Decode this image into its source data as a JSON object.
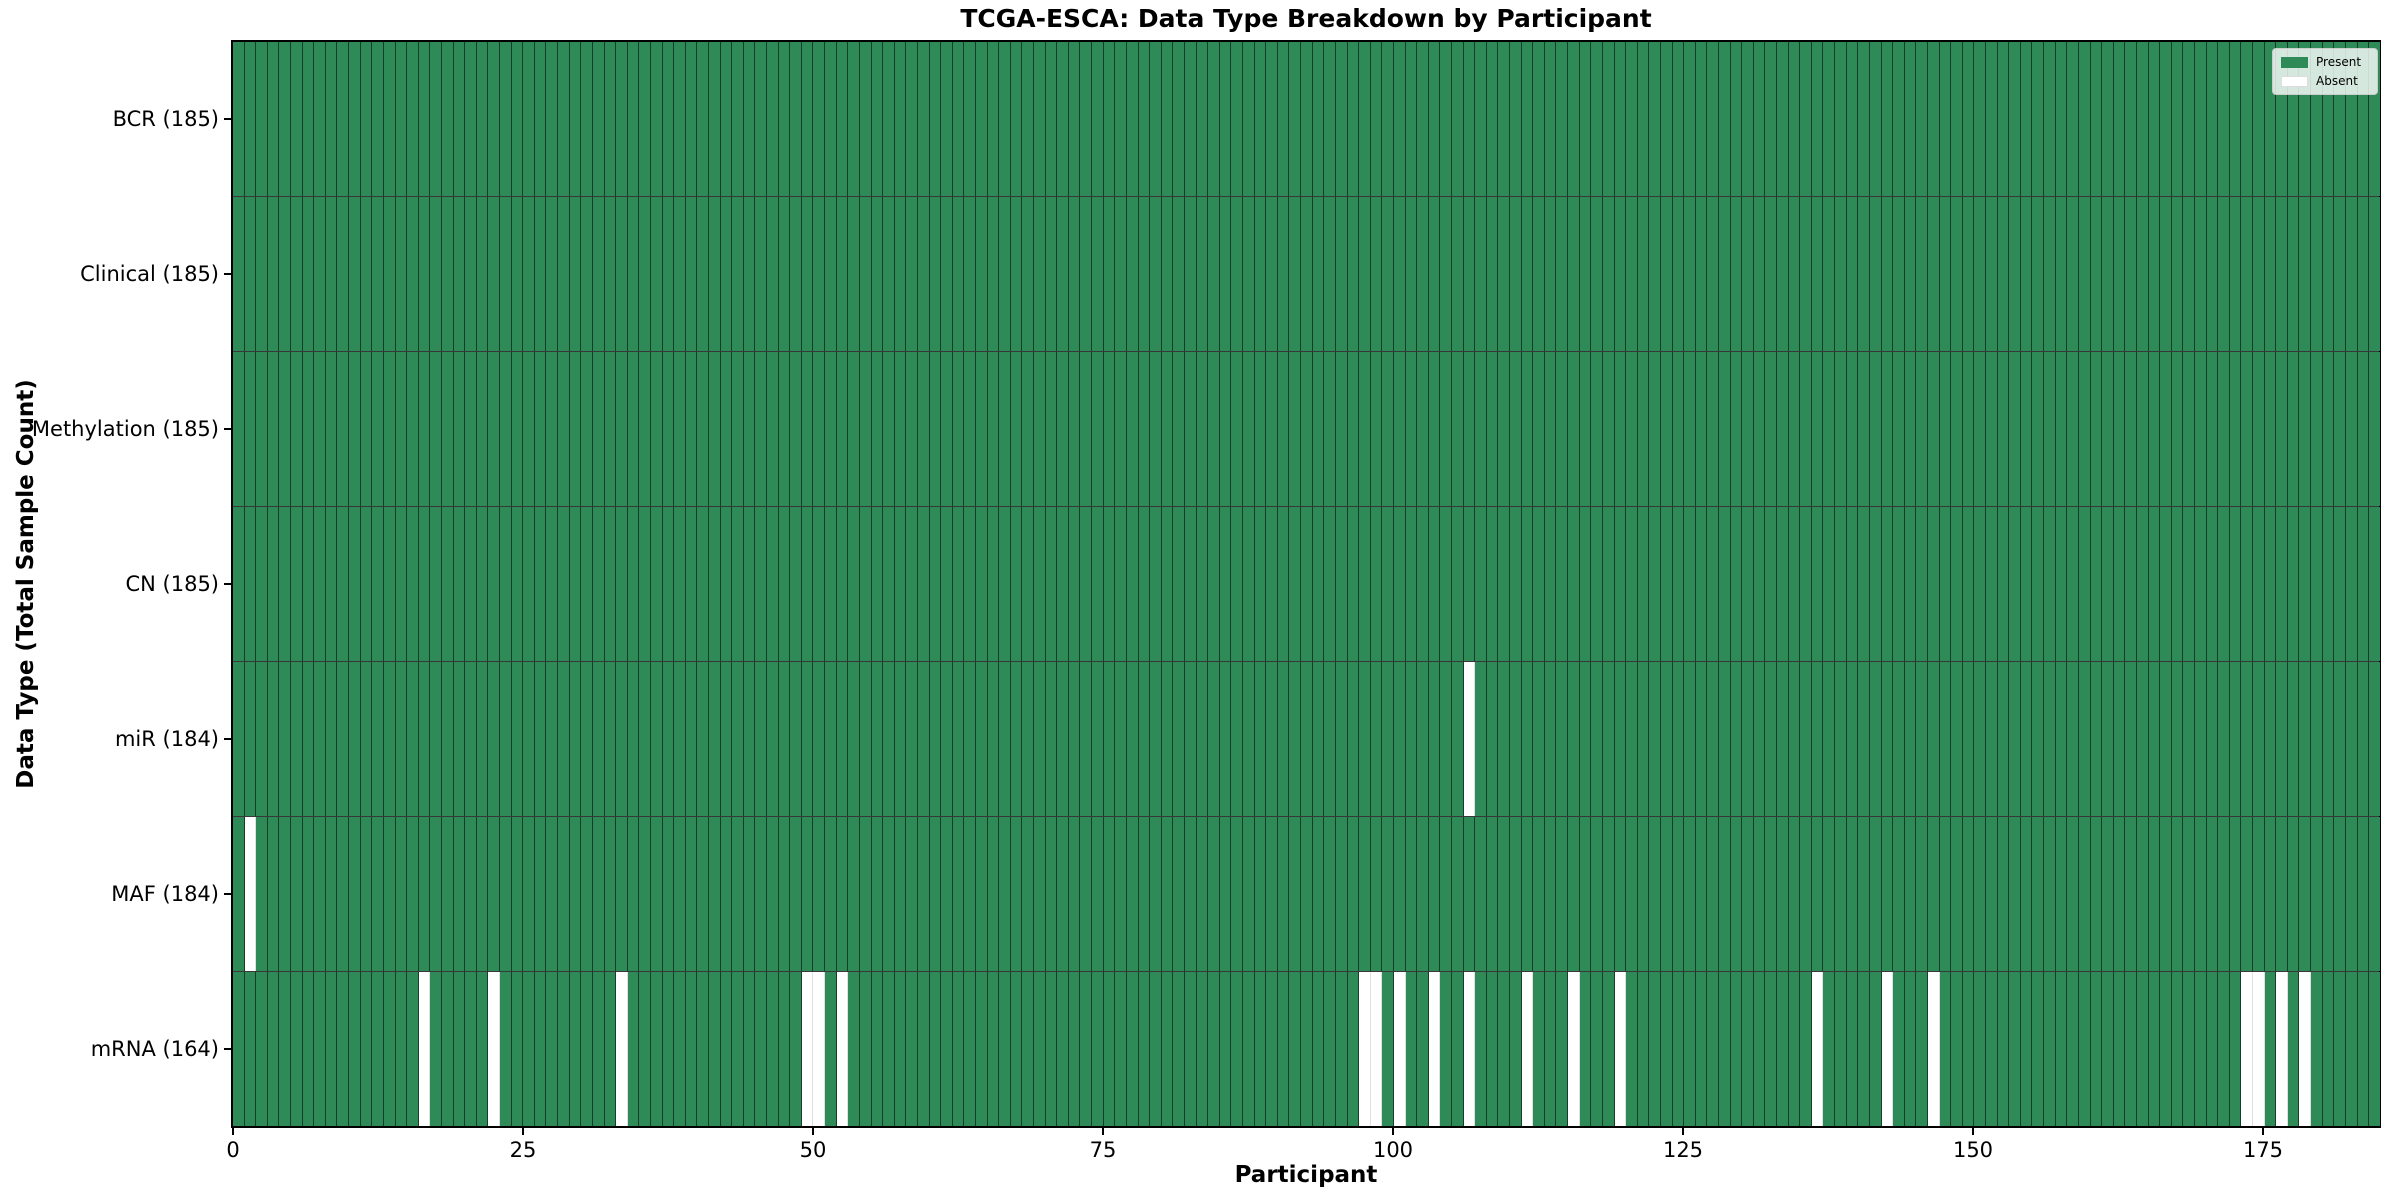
{
  "chart_data": {
    "type": "heatmap",
    "title": "TCGA-ESCA: Data Type Breakdown by Participant",
    "xlabel": "Participant",
    "ylabel": "Data Type (Total Sample Count)",
    "n_participants": 185,
    "x_ticks": [
      0,
      25,
      50,
      75,
      100,
      125,
      150,
      175
    ],
    "colors": {
      "present": "#2e8b57",
      "absent": "#ffffff"
    },
    "legend": [
      {
        "label": "Present",
        "color": "#2e8b57"
      },
      {
        "label": "Absent",
        "color": "#ffffff"
      }
    ],
    "legend_position": "upper right",
    "rows": [
      {
        "label": "BCR (185)",
        "total_samples": 185,
        "missing_participants": []
      },
      {
        "label": "Clinical (185)",
        "total_samples": 185,
        "missing_participants": []
      },
      {
        "label": "Methylation (185)",
        "total_samples": 185,
        "missing_participants": []
      },
      {
        "label": "CN (185)",
        "total_samples": 185,
        "missing_participants": []
      },
      {
        "label": "miR (184)",
        "total_samples": 184,
        "missing_participants": [
          106
        ]
      },
      {
        "label": "MAF (184)",
        "total_samples": 184,
        "missing_participants": [
          1
        ]
      },
      {
        "label": "mRNA (164)",
        "total_samples": 164,
        "missing_participants": [
          16,
          22,
          33,
          49,
          50,
          52,
          97,
          98,
          100,
          103,
          106,
          111,
          115,
          119,
          136,
          142,
          146,
          173,
          174,
          176,
          178
        ]
      }
    ]
  }
}
